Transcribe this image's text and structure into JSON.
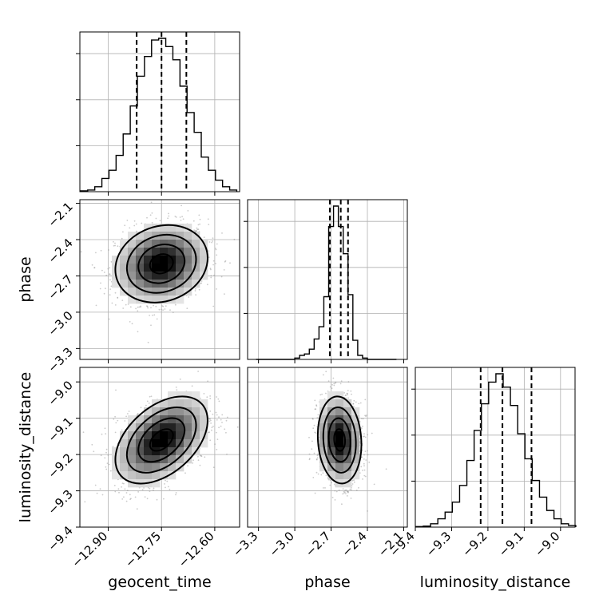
{
  "chart_data": {
    "type": "corner",
    "parameters": [
      "geocent_time",
      "phase",
      "luminosity_distance"
    ],
    "axis_labels": {
      "geocent_time": "geocent_time",
      "phase": "phase",
      "luminosity_distance": "luminosity_distance"
    },
    "ranges": {
      "geocent_time": [
        -12.98,
        -12.53
      ],
      "phase": [
        -3.39,
        -2.07
      ],
      "luminosity_distance": [
        -9.4,
        -8.96
      ]
    },
    "ticks": {
      "geocent_time": [
        -12.9,
        -12.75,
        -12.6
      ],
      "phase": [
        -3.3,
        -3.0,
        -2.7,
        -2.4,
        -2.1
      ],
      "luminosity_distance": [
        -9.4,
        -9.3,
        -9.2,
        -9.1,
        -9.0
      ]
    },
    "tick_labels": {
      "geocent_time": [
        "−12.90",
        "−12.75",
        "−12.60"
      ],
      "phase": [
        "−3.3",
        "−3.0",
        "−2.7",
        "−2.4",
        "−2.1"
      ],
      "luminosity_distance": [
        "−9.4",
        "−9.3",
        "−9.2",
        "−9.1",
        "−9.0"
      ]
    },
    "quantiles": {
      "geocent_time": [
        -12.82,
        -12.75,
        -12.68
      ],
      "phase": [
        -2.71,
        -2.62,
        -2.56
      ],
      "luminosity_distance": [
        -9.22,
        -9.16,
        -9.08
      ]
    },
    "histograms": {
      "geocent_time": {
        "bin_edges": [
          -12.978,
          -12.958,
          -12.938,
          -12.918,
          -12.898,
          -12.878,
          -12.858,
          -12.838,
          -12.818,
          -12.798,
          -12.778,
          -12.758,
          -12.738,
          -12.718,
          -12.698,
          -12.678,
          -12.658,
          -12.638,
          -12.618,
          -12.598,
          -12.578,
          -12.558,
          -12.538
        ],
        "counts": [
          0.5,
          1,
          3,
          8,
          13,
          22,
          35,
          52,
          70,
          82,
          92,
          93,
          88,
          80,
          64,
          48,
          36,
          21,
          13,
          7,
          3,
          1
        ]
      },
      "phase": {
        "bin_edges": [
          -3.32,
          -3.28,
          -3.24,
          -3.2,
          -3.16,
          -3.12,
          -3.08,
          -3.04,
          -3.0,
          -2.96,
          -2.92,
          -2.88,
          -2.84,
          -2.8,
          -2.76,
          -2.72,
          -2.68,
          -2.64,
          -2.6,
          -2.56,
          -2.52,
          -2.48,
          -2.44,
          -2.4,
          -2.36,
          -2.32,
          -2.28,
          -2.24,
          -2.2,
          -2.16
        ],
        "counts": [
          0,
          0,
          0,
          0,
          0,
          0,
          0,
          0,
          2,
          6,
          8,
          15,
          30,
          48,
          92,
          195,
          225,
          195,
          155,
          95,
          28,
          6,
          2,
          0,
          0,
          0,
          0,
          0,
          0
        ]
      },
      "luminosity_distance": {
        "bin_edges": [
          -9.398,
          -9.378,
          -9.358,
          -9.338,
          -9.318,
          -9.298,
          -9.278,
          -9.258,
          -9.238,
          -9.218,
          -9.198,
          -9.178,
          -9.158,
          -9.138,
          -9.118,
          -9.098,
          -9.078,
          -9.058,
          -9.038,
          -9.018,
          -8.998,
          -8.978,
          -8.958
        ],
        "counts": [
          0.3,
          0.6,
          2,
          5,
          9,
          15,
          25,
          40,
          58,
          74,
          87,
          92,
          84,
          73,
          56,
          41,
          28,
          18,
          10,
          5,
          2,
          1
        ]
      }
    },
    "pairs": [
      {
        "x": "geocent_time",
        "y": "phase",
        "mean": [
          -12.75,
          -2.6
        ],
        "sigma": [
          0.065,
          0.16
        ],
        "correlation": 0.15
      },
      {
        "x": "geocent_time",
        "y": "luminosity_distance",
        "mean": [
          -12.75,
          -9.16
        ],
        "sigma": [
          0.065,
          0.06
        ],
        "correlation": 0.45
      },
      {
        "x": "phase",
        "y": "luminosity_distance",
        "mean": [
          -2.63,
          -9.16
        ],
        "sigma": [
          0.09,
          0.06
        ],
        "correlation": -0.1
      }
    ],
    "contour_levels_sigma": [
      0.5,
      1.0,
      1.5,
      2.0
    ],
    "grid": true,
    "colors": {
      "line": "#000000",
      "points": "#8c8c8c",
      "grid": "#b0b0b0",
      "spine": "#000000"
    }
  }
}
